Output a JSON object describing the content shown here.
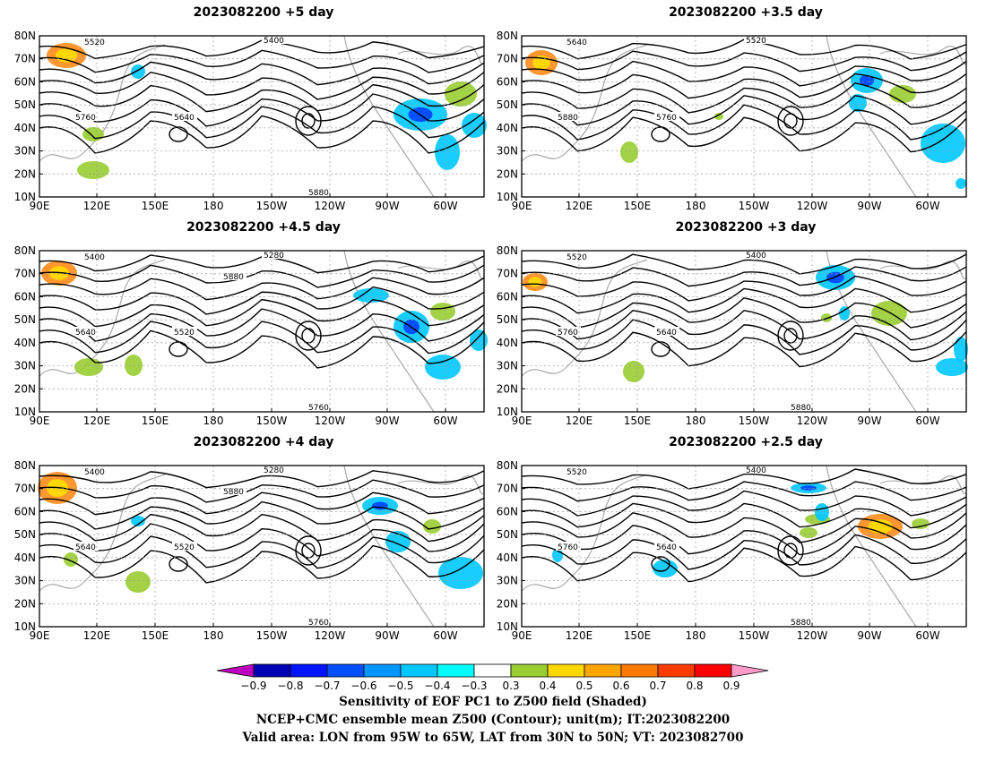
{
  "panels": [
    {
      "title": "2023082200  +5 day",
      "lead": "+5 day",
      "contour_labels": [
        "5400",
        "5520",
        "5640",
        "5760",
        "5880"
      ]
    },
    {
      "title": "2023082200  +3.5 day",
      "lead": "+3.5 day",
      "contour_labels": [
        "5520",
        "5640",
        "5760",
        "5880"
      ]
    },
    {
      "title": "2023082200  +4.5 day",
      "lead": "+4.5 day",
      "contour_labels": [
        "5280",
        "5400",
        "5520",
        "5640",
        "5760",
        "5880"
      ]
    },
    {
      "title": "2023082200  +3 day",
      "lead": "+3 day",
      "contour_labels": [
        "5400",
        "5520",
        "5640",
        "5760",
        "5880"
      ]
    },
    {
      "title": "2023082200  +4 day",
      "lead": "+4 day",
      "contour_labels": [
        "5280",
        "5400",
        "5520",
        "5640",
        "5760",
        "5880"
      ]
    },
    {
      "title": "2023082200  +2.5 day",
      "lead": "+2.5 day",
      "contour_labels": [
        "5400",
        "5520",
        "5640",
        "5760",
        "5880"
      ]
    }
  ],
  "map_axes": {
    "lat_labels": [
      "80N",
      "70N",
      "60N",
      "50N",
      "40N",
      "30N",
      "20N",
      "10N"
    ],
    "lon_labels": [
      "90E",
      "120E",
      "150E",
      "180",
      "150W",
      "120W",
      "90W",
      "60W"
    ],
    "lon_range": "90E to 40W",
    "lat_range": "10N to 80N"
  },
  "colorbar": {
    "ticks": [
      "−0.9",
      "−0.8",
      "−0.7",
      "−0.6",
      "−0.5",
      "−0.4",
      "−0.3",
      "0.3",
      "0.4",
      "0.5",
      "0.6",
      "0.7",
      "0.8",
      "0.9"
    ],
    "colors": [
      "#c000c0",
      "#0000b4",
      "#0014ff",
      "#0050ff",
      "#0096ff",
      "#00c8ff",
      "#00ffff",
      "#ffffff",
      "#9acd32",
      "#ffd700",
      "#ffa500",
      "#ff7800",
      "#ff3c00",
      "#ff0000",
      "#ff9bc8"
    ]
  },
  "footer": {
    "line1": "Sensitivity of EOF PC1 to Z500 field (Shaded)",
    "line2": "NCEP+CMC ensemble mean Z500 (Contour); unit(m); IT:2023082200",
    "line3": "Valid area: LON from 95W to 65W, LAT from 30N to 50N; VT: 2023082700"
  }
}
